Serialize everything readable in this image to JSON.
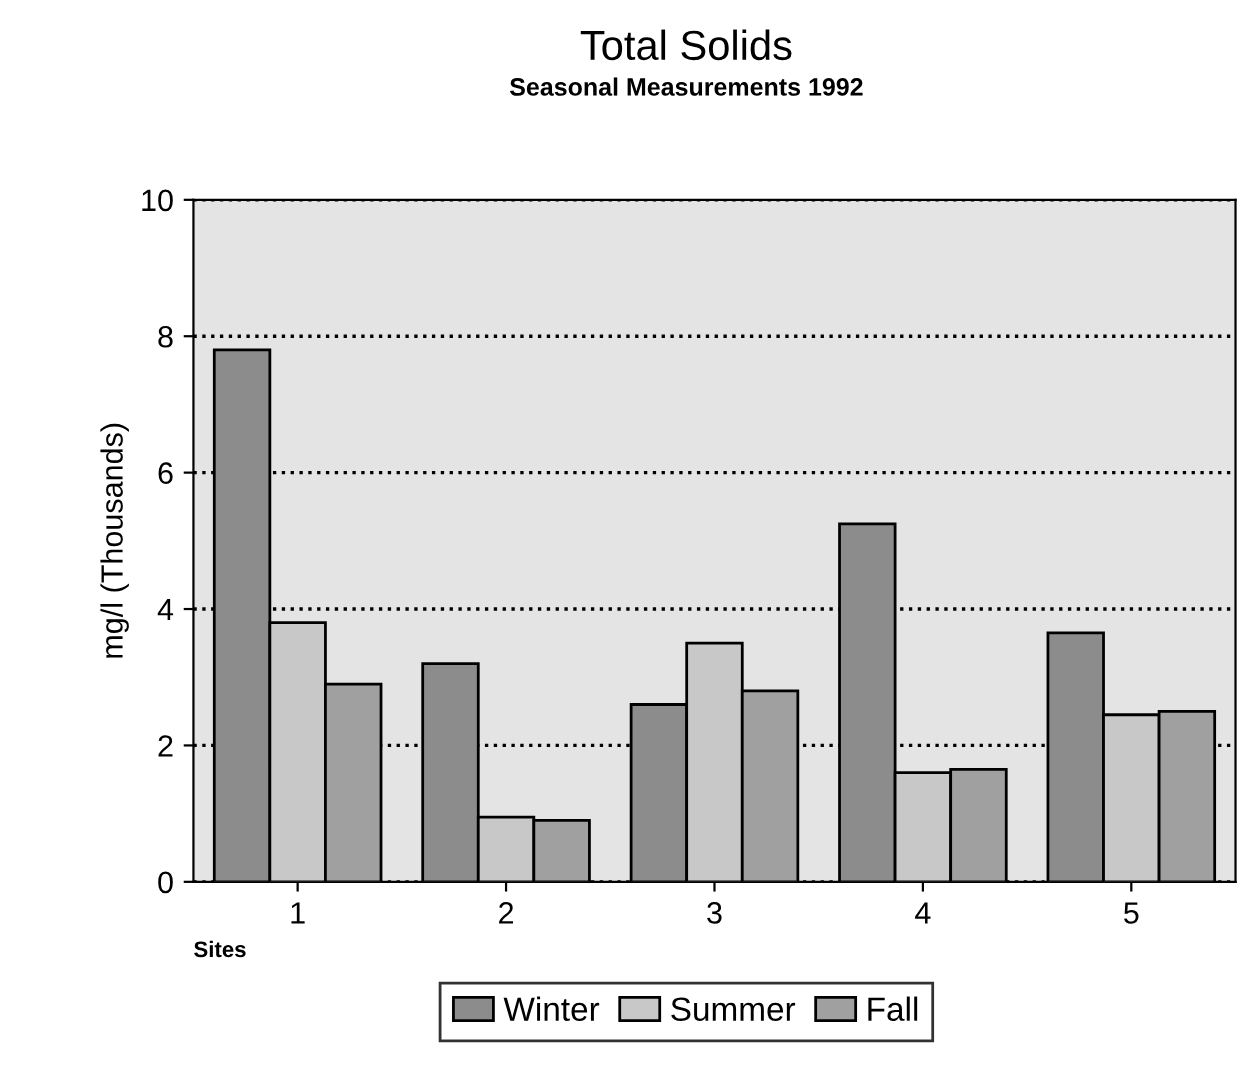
{
  "chart_data": {
    "type": "bar",
    "title": "Total Solids",
    "subtitle": "Seasonal Measurements 1992",
    "xlabel": "Sites",
    "ylabel": "mg/l (Thousands)",
    "categories": [
      "1",
      "2",
      "3",
      "4",
      "5"
    ],
    "series": [
      {
        "name": "Winter",
        "color": "#8c8c8c",
        "values": [
          7.8,
          3.2,
          2.6,
          5.25,
          3.65
        ]
      },
      {
        "name": "Summer",
        "color": "#c8c8c8",
        "values": [
          3.8,
          0.95,
          3.5,
          1.6,
          2.45
        ]
      },
      {
        "name": "Fall",
        "color": "#a0a0a0",
        "values": [
          2.9,
          0.9,
          2.8,
          1.65,
          2.5
        ]
      }
    ],
    "ylim": [
      0,
      10
    ],
    "yticks": [
      0,
      2,
      4,
      6,
      8,
      10
    ],
    "grid": "y",
    "legend": "bottom"
  }
}
